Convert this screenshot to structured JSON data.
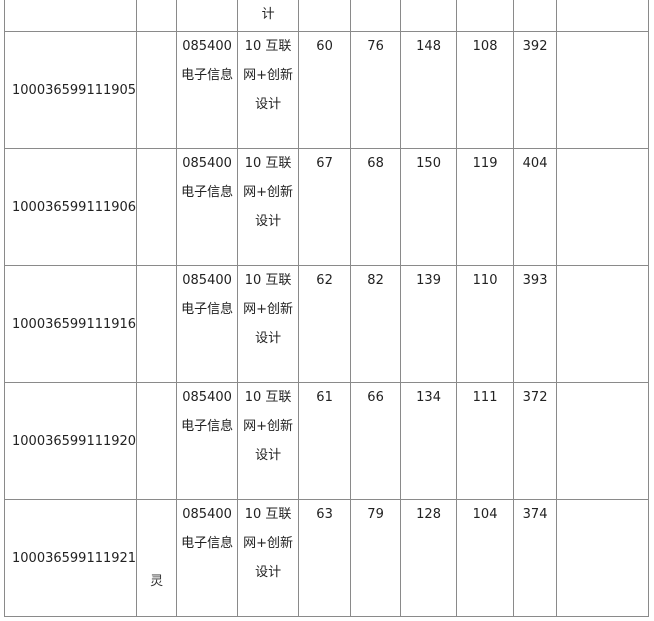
{
  "top_row": {
    "direction_tail": "计"
  },
  "rows": [
    {
      "id": "100036599111905",
      "name": "",
      "major": "085400电子信息",
      "direction": "10 互联网+创新设计",
      "s1": "60",
      "s2": "76",
      "s3": "148",
      "s4": "108",
      "total": "392"
    },
    {
      "id": "100036599111906",
      "name": "",
      "major": "085400电子信息",
      "direction": "10 互联网+创新设计",
      "s1": "67",
      "s2": "68",
      "s3": "150",
      "s4": "119",
      "total": "404"
    },
    {
      "id": "100036599111916",
      "name": "",
      "major": "085400电子信息",
      "direction": "10 互联网+创新设计",
      "s1": "62",
      "s2": "82",
      "s3": "139",
      "s4": "110",
      "total": "393"
    },
    {
      "id": "100036599111920",
      "name": "",
      "major": "085400电子信息",
      "direction": "10 互联网+创新设计",
      "s1": "61",
      "s2": "66",
      "s3": "134",
      "s4": "111",
      "total": "372"
    },
    {
      "id": "100036599111921",
      "name": "灵",
      "major": "085400电子信息",
      "direction": "10 互联网+创新设计",
      "s1": "63",
      "s2": "79",
      "s3": "128",
      "s4": "104",
      "total": "374"
    }
  ]
}
